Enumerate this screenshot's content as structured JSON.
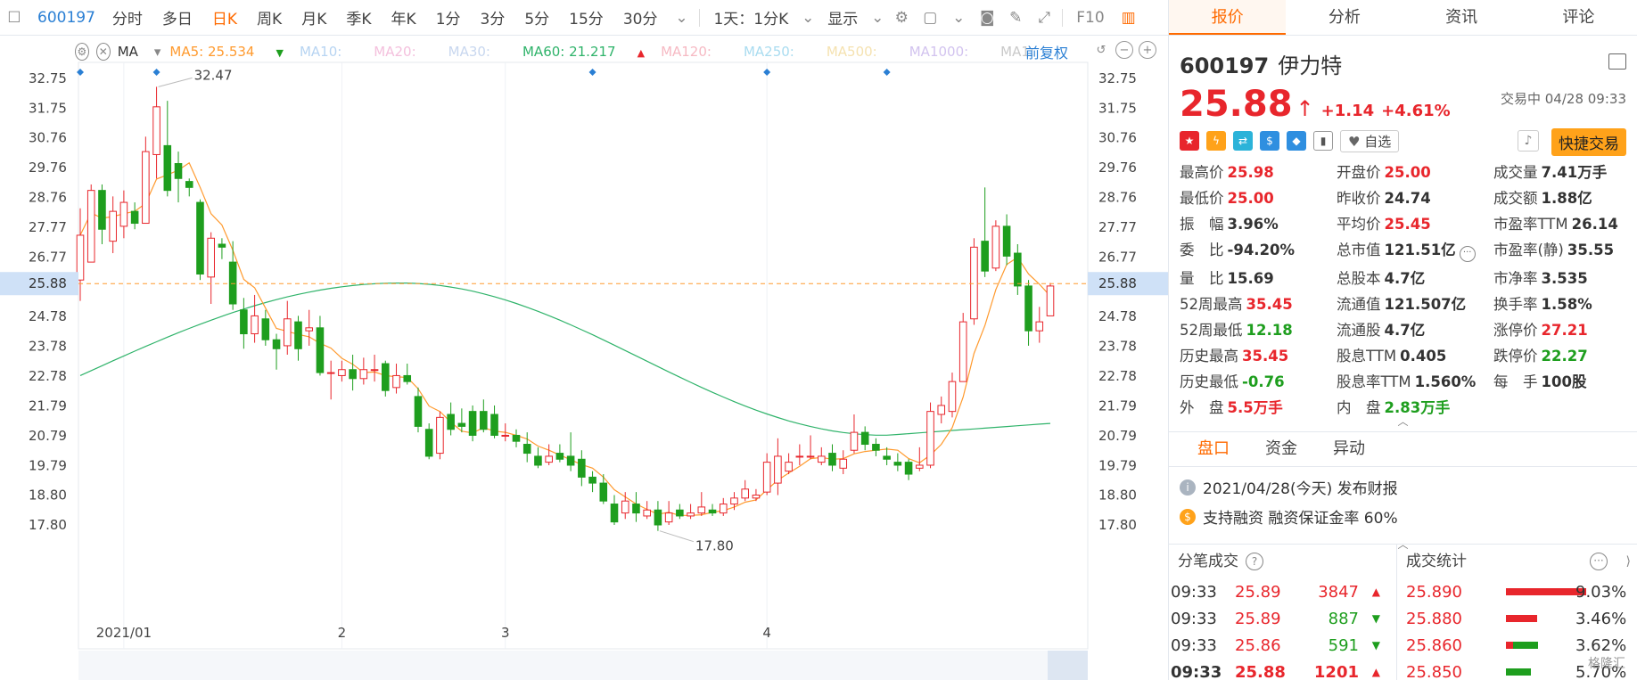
{
  "toolbar": {
    "code": "600197",
    "tabs": [
      "分时",
      "多日",
      "日K",
      "周K",
      "月K",
      "季K",
      "年K",
      "1分",
      "3分",
      "5分",
      "15分",
      "30分"
    ],
    "active_index": 2,
    "range_label": "1天：1分K",
    "display_label": "显示",
    "f10_label": "F10"
  },
  "ma_bar": {
    "ma_label": "MA",
    "items": [
      {
        "label": "MA5: 25.534",
        "color": "#ff9a2e",
        "arrow": "▼",
        "arrow_color": "#1e9e1e"
      },
      {
        "label": "MA10:",
        "color": "#b7d4f2",
        "arrow": "",
        "arrow_color": ""
      },
      {
        "label": "MA20:",
        "color": "#f4c0dd",
        "arrow": "",
        "arrow_color": ""
      },
      {
        "label": "MA30:",
        "color": "#c8d7ef",
        "arrow": "",
        "arrow_color": ""
      },
      {
        "label": "MA60: 21.217",
        "color": "#2fb36a",
        "arrow": "▲",
        "arrow_color": "#e8262c"
      },
      {
        "label": "MA120:",
        "color": "#f6b9c3",
        "arrow": "",
        "arrow_color": ""
      },
      {
        "label": "MA250:",
        "color": "#a9dcf0",
        "arrow": "",
        "arrow_color": ""
      },
      {
        "label": "MA500:",
        "color": "#f5e2b0",
        "arrow": "",
        "arrow_color": ""
      },
      {
        "label": "MA1000:",
        "color": "#d2c3ef",
        "arrow": "",
        "arrow_color": ""
      },
      {
        "label": "MA1:",
        "color": "#c9c9c9",
        "arrow": "",
        "arrow_color": ""
      }
    ],
    "fuquan": "前复权"
  },
  "chart_data": {
    "type": "candlestick",
    "y_ticks": [
      "32.75",
      "31.75",
      "30.76",
      "29.76",
      "28.76",
      "27.77",
      "26.77",
      "25.88",
      "24.78",
      "23.78",
      "22.78",
      "21.79",
      "20.79",
      "19.79",
      "18.80",
      "17.80"
    ],
    "current_price_label": "25.88",
    "current_price": 25.88,
    "high_annotation": "32.47",
    "low_annotation": "17.80",
    "x_labels": [
      {
        "text": "2021/01",
        "index": 4
      },
      {
        "text": "2",
        "index": 24
      },
      {
        "text": "3",
        "index": 39
      },
      {
        "text": "4",
        "index": 63
      }
    ],
    "candles": [
      [
        26.0,
        27.5,
        28.4,
        25.3
      ],
      [
        26.6,
        29.0,
        29.2,
        26.6
      ],
      [
        29.0,
        27.7,
        29.2,
        27.2
      ],
      [
        27.3,
        28.3,
        28.8,
        26.9
      ],
      [
        27.8,
        28.6,
        29.0,
        27.4
      ],
      [
        28.3,
        27.9,
        28.6,
        27.7
      ],
      [
        27.9,
        30.3,
        30.8,
        27.9
      ],
      [
        30.2,
        31.8,
        32.47,
        29.4
      ],
      [
        30.5,
        29.0,
        32.0,
        28.8
      ],
      [
        29.9,
        29.4,
        30.3,
        28.6
      ],
      [
        29.3,
        29.1,
        29.4,
        28.8
      ],
      [
        28.6,
        26.2,
        28.7,
        26.0
      ],
      [
        26.1,
        27.4,
        27.6,
        25.2
      ],
      [
        27.2,
        27.1,
        27.4,
        26.7
      ],
      [
        26.6,
        25.2,
        27.3,
        25.0
      ],
      [
        25.0,
        24.2,
        25.4,
        23.7
      ],
      [
        24.2,
        24.8,
        25.5,
        23.9
      ],
      [
        24.7,
        24.0,
        25.0,
        23.8
      ],
      [
        24.0,
        23.7,
        24.2,
        23.0
      ],
      [
        23.8,
        24.7,
        25.3,
        23.5
      ],
      [
        24.6,
        23.7,
        24.8,
        23.3
      ],
      [
        24.3,
        24.4,
        25.0,
        23.8
      ],
      [
        24.4,
        22.9,
        24.8,
        22.8
      ],
      [
        22.9,
        22.9,
        23.3,
        22.0
      ],
      [
        22.8,
        23.0,
        23.3,
        22.6
      ],
      [
        23.0,
        22.7,
        23.5,
        22.3
      ],
      [
        22.7,
        23.0,
        23.4,
        22.5
      ],
      [
        23.0,
        23.0,
        23.5,
        22.6
      ],
      [
        23.2,
        22.3,
        23.3,
        22.1
      ],
      [
        22.4,
        22.8,
        23.2,
        22.2
      ],
      [
        22.8,
        22.6,
        23.2,
        22.5
      ],
      [
        22.1,
        21.1,
        22.4,
        20.9
      ],
      [
        21.0,
        20.1,
        21.2,
        20.0
      ],
      [
        20.2,
        21.4,
        21.6,
        20.0
      ],
      [
        21.5,
        21.0,
        21.9,
        20.8
      ],
      [
        21.2,
        21.1,
        21.7,
        20.9
      ],
      [
        21.6,
        20.8,
        21.8,
        20.6
      ],
      [
        21.6,
        21.0,
        22.0,
        20.9
      ],
      [
        21.5,
        20.8,
        21.8,
        20.7
      ],
      [
        20.8,
        20.8,
        21.2,
        20.6
      ],
      [
        20.8,
        20.6,
        21.0,
        20.4
      ],
      [
        20.5,
        20.2,
        20.9,
        19.9
      ],
      [
        20.1,
        19.8,
        20.4,
        19.7
      ],
      [
        19.9,
        20.1,
        20.5,
        19.8
      ],
      [
        20.2,
        20.0,
        20.5,
        19.9
      ],
      [
        20.1,
        19.8,
        20.9,
        19.6
      ],
      [
        20.0,
        19.4,
        20.3,
        19.1
      ],
      [
        19.4,
        19.2,
        19.6,
        18.9
      ],
      [
        19.2,
        18.6,
        19.5,
        18.5
      ],
      [
        18.5,
        17.9,
        18.8,
        17.8
      ],
      [
        18.2,
        18.6,
        18.9,
        18.0
      ],
      [
        18.5,
        18.2,
        18.9,
        17.9
      ],
      [
        18.1,
        18.3,
        18.6,
        18.0
      ],
      [
        18.3,
        17.8,
        18.6,
        17.6
      ],
      [
        17.9,
        18.2,
        18.6,
        17.8
      ],
      [
        18.3,
        18.1,
        18.5,
        18.0
      ],
      [
        18.1,
        18.2,
        18.5,
        18.0
      ],
      [
        18.2,
        18.4,
        18.9,
        18.1
      ],
      [
        18.3,
        18.2,
        18.5,
        18.1
      ],
      [
        18.2,
        18.5,
        18.7,
        18.1
      ],
      [
        18.5,
        18.7,
        18.9,
        18.3
      ],
      [
        18.7,
        19.0,
        19.3,
        18.6
      ],
      [
        18.7,
        18.8,
        19.0,
        18.6
      ],
      [
        18.9,
        19.9,
        20.2,
        18.8
      ],
      [
        19.2,
        20.1,
        20.7,
        18.8
      ],
      [
        19.6,
        19.9,
        20.2,
        19.5
      ],
      [
        20.1,
        20.1,
        20.5,
        19.8
      ],
      [
        20.1,
        20.1,
        20.8,
        20.0
      ],
      [
        19.9,
        20.1,
        20.4,
        19.8
      ],
      [
        20.2,
        19.8,
        20.5,
        19.6
      ],
      [
        19.7,
        20.0,
        20.3,
        19.5
      ],
      [
        20.3,
        20.9,
        21.5,
        20.2
      ],
      [
        20.9,
        20.5,
        21.1,
        20.3
      ],
      [
        20.5,
        20.3,
        20.7,
        20.1
      ],
      [
        20.1,
        20.0,
        20.4,
        19.8
      ],
      [
        19.9,
        19.8,
        20.2,
        19.6
      ],
      [
        19.9,
        19.5,
        20.0,
        19.3
      ],
      [
        19.7,
        19.8,
        20.4,
        19.6
      ],
      [
        19.8,
        21.6,
        21.9,
        19.7
      ],
      [
        21.5,
        21.8,
        22.1,
        21.2
      ],
      [
        21.6,
        22.6,
        22.9,
        21.4
      ],
      [
        22.6,
        24.6,
        24.9,
        22.6
      ],
      [
        24.7,
        27.1,
        27.4,
        24.5
      ],
      [
        27.3,
        26.3,
        29.1,
        26.1
      ],
      [
        26.4,
        27.8,
        28.0,
        26.3
      ],
      [
        27.8,
        26.8,
        28.2,
        26.5
      ],
      [
        26.9,
        25.8,
        27.2,
        25.5
      ],
      [
        25.8,
        24.3,
        26.0,
        23.8
      ],
      [
        24.3,
        24.6,
        25.1,
        23.9
      ],
      [
        24.8,
        25.8,
        25.9,
        24.8
      ]
    ],
    "ma5_color": "#ff9a2e",
    "ma60_color": "#2fb36a",
    "up_color": "#e8262c",
    "down_color": "#1e9e1e"
  },
  "right": {
    "tabs": [
      "报价",
      "分析",
      "资讯",
      "评论"
    ],
    "active_tab": 0,
    "code": "600197",
    "name": "伊力特",
    "price": "25.88",
    "arrow": "↑",
    "change": "+1.14",
    "change_pct": "+4.61%",
    "status": "交易中 04/28 09:33",
    "zixuan": "自选",
    "fast_trade": "快捷交易",
    "quote": [
      {
        "label": "最高价",
        "value": "25.98",
        "cls": "red"
      },
      {
        "label": "开盘价",
        "value": "25.00",
        "cls": "red"
      },
      {
        "label": "成交量",
        "value": "7.41万手",
        "cls": ""
      },
      {
        "label": "最低价",
        "value": "25.00",
        "cls": "red"
      },
      {
        "label": "昨收价",
        "value": "24.74",
        "cls": ""
      },
      {
        "label": "成交额",
        "value": "1.88亿",
        "cls": ""
      },
      {
        "label": "振　幅",
        "value": "3.96%",
        "cls": ""
      },
      {
        "label": "平均价",
        "value": "25.45",
        "cls": "red"
      },
      {
        "label": "市盈率TTM",
        "value": "26.14",
        "cls": ""
      },
      {
        "label": "委　比",
        "value": "-94.20%",
        "cls": ""
      },
      {
        "label": "总市值",
        "value": "121.51亿",
        "cls": ""
      },
      {
        "label": "市盈率(静)",
        "value": "35.55",
        "cls": ""
      },
      {
        "label": "量　比",
        "value": "15.69",
        "cls": ""
      },
      {
        "label": "总股本",
        "value": "4.7亿",
        "cls": ""
      },
      {
        "label": "市净率",
        "value": "3.535",
        "cls": ""
      },
      {
        "label": "52周最高",
        "value": "35.45",
        "cls": "red"
      },
      {
        "label": "流通值",
        "value": "121.507亿",
        "cls": ""
      },
      {
        "label": "换手率",
        "value": "1.58%",
        "cls": ""
      },
      {
        "label": "52周最低",
        "value": "12.18",
        "cls": "green"
      },
      {
        "label": "流通股",
        "value": "4.7亿",
        "cls": ""
      },
      {
        "label": "涨停价",
        "value": "27.21",
        "cls": "red"
      },
      {
        "label": "历史最高",
        "value": "35.45",
        "cls": "red"
      },
      {
        "label": "股息TTM",
        "value": "0.405",
        "cls": ""
      },
      {
        "label": "跌停价",
        "value": "22.27",
        "cls": "green"
      },
      {
        "label": "历史最低",
        "value": "-0.76",
        "cls": "green"
      },
      {
        "label": "股息率TTM",
        "value": "1.560%",
        "cls": ""
      },
      {
        "label": "每　手",
        "value": "100股",
        "cls": ""
      },
      {
        "label": "外　盘",
        "value": "5.5万手",
        "cls": "red"
      },
      {
        "label": "内　盘",
        "value": "2.83万手",
        "cls": "green"
      },
      {
        "label": "",
        "value": "",
        "cls": ""
      }
    ],
    "subtabs": [
      "盘口",
      "资金",
      "异动"
    ],
    "notices": [
      {
        "icon": "i",
        "color": "#aab4c0",
        "text": "2021/04/28(今天) 发布财报"
      },
      {
        "icon": "$",
        "color": "#ffa21a",
        "text": "支持融资 融资保证金率 60%"
      }
    ],
    "ticks_title": "分笔成交",
    "ticks": [
      {
        "time": "09:33",
        "price": "25.89",
        "vol": "3847",
        "dir": "up"
      },
      {
        "time": "09:33",
        "price": "25.89",
        "vol": "887",
        "dir": "down"
      },
      {
        "time": "09:33",
        "price": "25.86",
        "vol": "591",
        "dir": "down"
      },
      {
        "time": "09:33",
        "price": "25.88",
        "vol": "1201",
        "dir": "up"
      }
    ],
    "stats_title": "成交统计",
    "stats": [
      {
        "price": "25.890",
        "pct": "9.03%",
        "red": 0.82,
        "green": 0.0
      },
      {
        "price": "25.880",
        "pct": "3.46%",
        "red": 0.32,
        "green": 0.0
      },
      {
        "price": "25.860",
        "pct": "3.62%",
        "red": 0.07,
        "green": 0.26
      },
      {
        "price": "25.850",
        "pct": "5.70%",
        "red": 0.0,
        "green": 0.25
      }
    ],
    "logo": "格隆汇"
  }
}
